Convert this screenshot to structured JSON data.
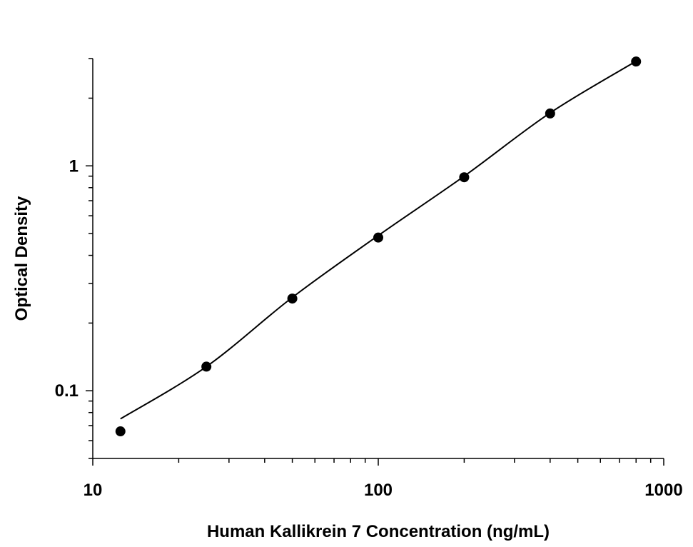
{
  "chart_data": {
    "type": "scatter",
    "x_label": "Human Kallikrein 7 Concentration (ng/mL)",
    "y_label": "Optical Density",
    "x": [
      12.5,
      25,
      50,
      100,
      200,
      400,
      800
    ],
    "values": [
      0.066,
      0.128,
      0.257,
      0.48,
      0.89,
      1.71,
      2.91
    ],
    "color": "#000000",
    "fit": {
      "x": [
        12.5,
        25,
        50,
        100,
        200,
        400,
        800
      ],
      "values": [
        0.075,
        0.128,
        0.26,
        0.49,
        0.9,
        1.72,
        2.92
      ],
      "color": "#000000"
    },
    "xscale": "log",
    "yscale": "log",
    "xlim": [
      10,
      1000
    ],
    "ylim": [
      0.05,
      3
    ],
    "xticks": [
      10,
      100,
      1000
    ],
    "yticks": [
      0.1,
      1
    ],
    "xminorticks": [
      20,
      30,
      40,
      50,
      60,
      70,
      80,
      90,
      200,
      300,
      400,
      500,
      600,
      700,
      800,
      900
    ],
    "yminorticks": [
      0.05,
      0.06,
      0.07,
      0.08,
      0.09,
      0.2,
      0.3,
      0.4,
      0.5,
      0.6,
      0.7,
      0.8,
      0.9,
      2,
      3
    ],
    "grid": false
  }
}
